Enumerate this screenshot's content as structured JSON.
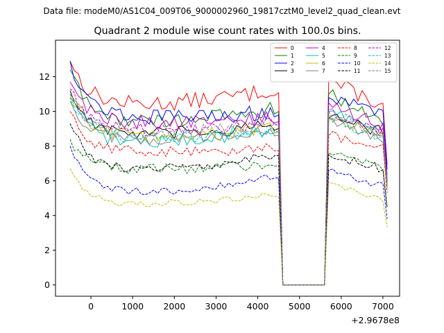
{
  "suptitle": "Data file: modeM0/AS1C04_009T06_9000002960_19817cztM0_level2_quad_clean.evt",
  "chart_data": {
    "type": "line",
    "title": "Quadrant 2 module wise count rates with 100.0s bins.",
    "xlabel": "",
    "ylabel": "",
    "offset_text": "+2.9678e8",
    "xlim": [
      -850,
      7400
    ],
    "ylim": [
      -0.65,
      14.1
    ],
    "xticks": [
      0,
      1000,
      2000,
      3000,
      4000,
      5000,
      6000,
      7000
    ],
    "yticks": [
      0,
      2,
      4,
      6,
      8,
      10,
      12
    ],
    "grid": false,
    "legend_position": "top-right",
    "x_start": -500,
    "bin_width": 100,
    "gap": {
      "first_zero_bin": 51,
      "last_zero_bin": 61
    },
    "series": [
      {
        "name": "0",
        "color": "#ff0000",
        "style": "solid",
        "start": 12.9,
        "trough": 10.3,
        "pre_gap": 11.3,
        "post_start": 11.8,
        "post_end": 10.2
      },
      {
        "name": "1",
        "color": "#008000",
        "style": "solid",
        "start": 12.4,
        "trough": 9.3,
        "pre_gap": 10.2,
        "post_start": 11.0,
        "post_end": 9.3
      },
      {
        "name": "2",
        "color": "#0000ff",
        "style": "solid",
        "start": 12.9,
        "trough": 9.6,
        "pre_gap": 10.0,
        "post_start": 10.8,
        "post_end": 9.8
      },
      {
        "name": "3",
        "color": "#000000",
        "style": "solid",
        "start": 11.2,
        "trough": 8.6,
        "pre_gap": 9.2,
        "post_start": 9.6,
        "post_end": 8.8
      },
      {
        "name": "4",
        "color": "#bf00bf",
        "style": "solid",
        "start": 11.7,
        "trough": 9.3,
        "pre_gap": 9.6,
        "post_start": 10.5,
        "post_end": 9.0
      },
      {
        "name": "5",
        "color": "#00bfbf",
        "style": "solid",
        "start": 10.8,
        "trough": 8.1,
        "pre_gap": 9.0,
        "post_start": 10.0,
        "post_end": 8.6
      },
      {
        "name": "6",
        "color": "#bfbf00",
        "style": "solid",
        "start": 11.0,
        "trough": 8.5,
        "pre_gap": 9.0,
        "post_start": 9.8,
        "post_end": 8.5
      },
      {
        "name": "7",
        "color": "#808080",
        "style": "solid",
        "start": 10.6,
        "trough": 8.3,
        "pre_gap": 8.8,
        "post_start": 9.6,
        "post_end": 8.2
      },
      {
        "name": "8",
        "color": "#ff0000",
        "style": "dashed",
        "start": 10.0,
        "trough": 7.6,
        "pre_gap": 7.9,
        "post_start": 8.6,
        "post_end": 7.8
      },
      {
        "name": "9",
        "color": "#008000",
        "style": "dashed",
        "start": 8.4,
        "trough": 6.6,
        "pre_gap": 7.0,
        "post_start": 7.6,
        "post_end": 6.6
      },
      {
        "name": "10",
        "color": "#0000ff",
        "style": "dashed",
        "start": 8.0,
        "trough": 5.2,
        "pre_gap": 6.3,
        "post_start": 6.6,
        "post_end": 5.6
      },
      {
        "name": "11",
        "color": "#000000",
        "style": "dashed",
        "start": 9.3,
        "trough": 6.5,
        "pre_gap": 7.6,
        "post_start": 7.5,
        "post_end": 6.6
      },
      {
        "name": "12",
        "color": "#bf00bf",
        "style": "dashed",
        "start": 11.3,
        "trough": 8.8,
        "pre_gap": 9.4,
        "post_start": 10.1,
        "post_end": 8.6
      },
      {
        "name": "13",
        "color": "#00bfbf",
        "style": "dashed",
        "start": 10.8,
        "trough": 8.4,
        "pre_gap": 9.0,
        "post_start": 9.7,
        "post_end": 8.4
      },
      {
        "name": "14",
        "color": "#bfbf00",
        "style": "dashed",
        "start": 6.7,
        "trough": 4.6,
        "pre_gap": 5.2,
        "post_start": 5.9,
        "post_end": 4.9
      },
      {
        "name": "15",
        "color": "#808080",
        "style": "dashed",
        "start": 11.0,
        "trough": 8.6,
        "pre_gap": 9.4,
        "post_start": 10.0,
        "post_end": 8.5
      }
    ]
  }
}
